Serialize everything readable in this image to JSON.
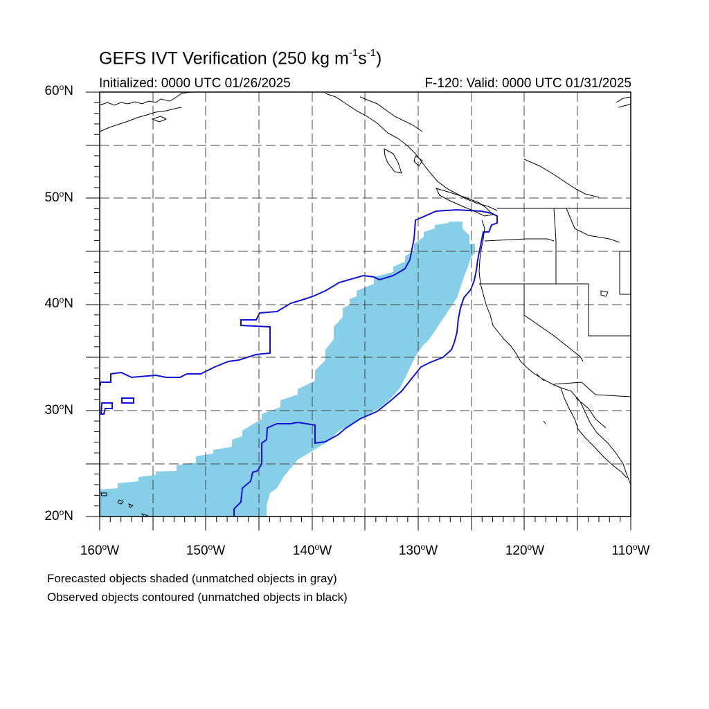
{
  "header": {
    "title_main": "GEFS IVT Verification (250 kg m",
    "title_sup1": "-1",
    "title_mid": "s",
    "title_sup2": "-1",
    "title_end": ")",
    "initialized": "Initialized: 0000 UTC 01/26/2025",
    "valid": "F-120: Valid: 0000 UTC 01/31/2025"
  },
  "axes": {
    "lat_labels": [
      {
        "num": "60",
        "deg": "o",
        "dir": "N"
      },
      {
        "num": "50",
        "deg": "o",
        "dir": "N"
      },
      {
        "num": "40",
        "deg": "o",
        "dir": "N"
      },
      {
        "num": "30",
        "deg": "o",
        "dir": "N"
      },
      {
        "num": "20",
        "deg": "o",
        "dir": "N"
      }
    ],
    "lon_labels": [
      {
        "num": "160",
        "deg": "o",
        "dir": "W"
      },
      {
        "num": "150",
        "deg": "o",
        "dir": "W"
      },
      {
        "num": "140",
        "deg": "o",
        "dir": "W"
      },
      {
        "num": "130",
        "deg": "o",
        "dir": "W"
      },
      {
        "num": "120",
        "deg": "o",
        "dir": "W"
      },
      {
        "num": "110",
        "deg": "o",
        "dir": "W"
      }
    ],
    "lat_range": [
      20,
      60
    ],
    "lon_range": [
      -160,
      -110
    ],
    "grid_spacing_deg": 5
  },
  "notes": {
    "line1": "Forecasted objects shaded (unmatched objects in gray)",
    "line2": "Observed objects contoured (unmatched objects in black)"
  },
  "colors": {
    "forecast_fill": "#87CEE8",
    "observed_contour": "#1010DD",
    "coastline": "#000000",
    "grid": "#444444"
  }
}
